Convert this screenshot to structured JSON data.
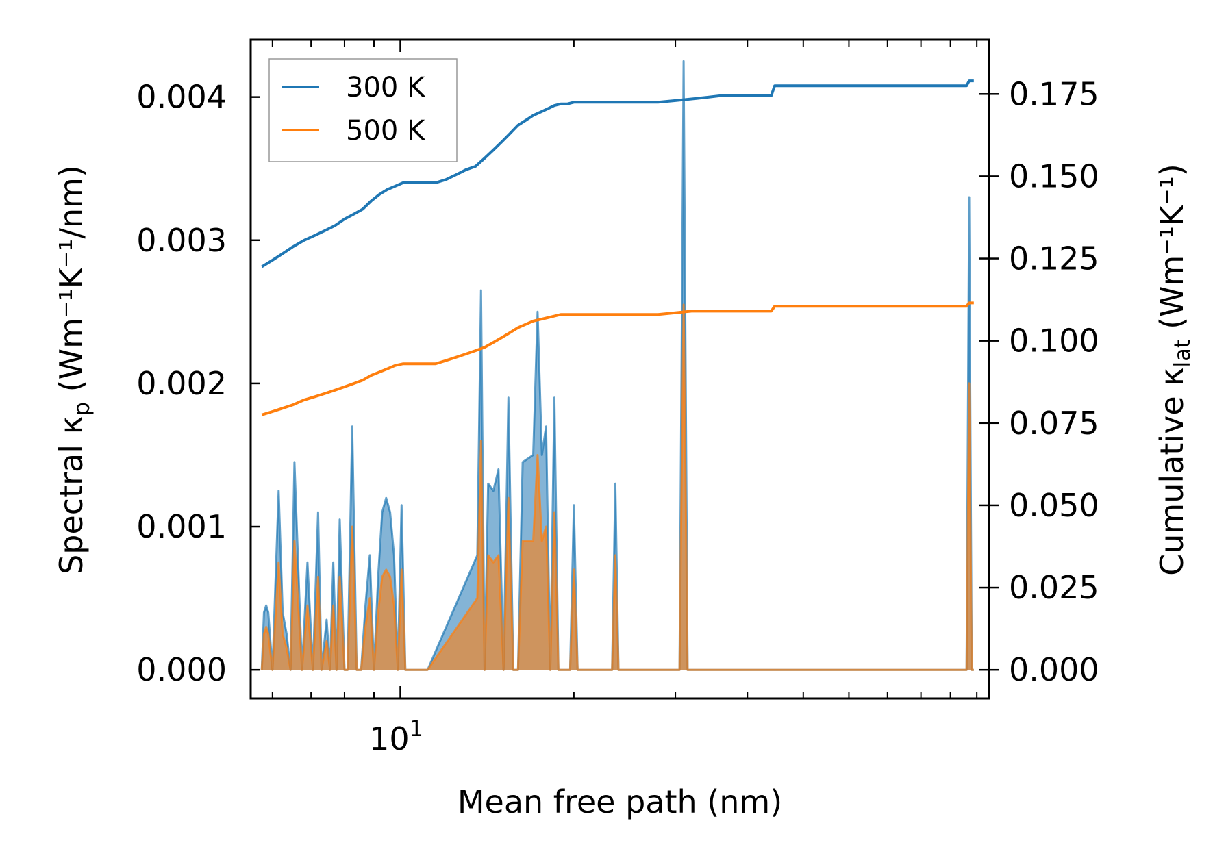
{
  "chart_data": {
    "type": "line",
    "xlabel": "Mean free path (nm)",
    "x_scale": "log",
    "xlim": [
      5.5,
      105
    ],
    "x_ticklabels": [
      {
        "value": 10,
        "base": "10",
        "exponent": "1"
      }
    ],
    "y_left": {
      "label_main": "Spectral κ",
      "label_sub": "p",
      "label_units": " (Wm⁻¹K⁻¹/nm)",
      "ylim": [
        -0.0002,
        0.0044
      ],
      "ticks": [
        0.0,
        0.001,
        0.002,
        0.003,
        0.004
      ],
      "ticklabels": [
        "0.000",
        "0.001",
        "0.002",
        "0.003",
        "0.004"
      ]
    },
    "y_right": {
      "label_main": "Cumulative κ",
      "label_sub": "lat",
      "label_units": " (Wm⁻¹K⁻¹)",
      "ylim": [
        -0.0087,
        0.1915
      ],
      "ticks": [
        0.0,
        0.025,
        0.05,
        0.075,
        0.1,
        0.125,
        0.15,
        0.175
      ],
      "ticklabels": [
        "0.000",
        "0.025",
        "0.050",
        "0.075",
        "0.100",
        "0.125",
        "0.150",
        "0.175"
      ]
    },
    "legend": {
      "position": "top-left"
    },
    "series": [
      {
        "name": "300 K",
        "color": "#1f77b4",
        "spectral_x": [
          5.75,
          5.8,
          5.85,
          5.9,
          6.0,
          6.15,
          6.25,
          6.35,
          6.45,
          6.55,
          6.75,
          6.9,
          7.05,
          7.2,
          7.3,
          7.45,
          7.55,
          7.65,
          7.75,
          7.85,
          8.0,
          8.1,
          8.25,
          8.4,
          8.55,
          8.7,
          8.85,
          9.0,
          9.15,
          9.3,
          9.45,
          9.6,
          9.75,
          9.9,
          10.05,
          10.2,
          10.35,
          10.5,
          10.7,
          10.85,
          11.0,
          11.15,
          13.6,
          13.8,
          14.0,
          14.2,
          14.5,
          14.8,
          15.1,
          15.4,
          15.7,
          16.0,
          16.3,
          17.0,
          17.3,
          17.6,
          17.9,
          18.2,
          18.5,
          18.8,
          19.1,
          19.4,
          19.7,
          20.0,
          20.3,
          20.6,
          21.0,
          23.3,
          23.6,
          23.9,
          30.5,
          31.0,
          31.5,
          44.0,
          44.5,
          45.2,
          96.0,
          97.0,
          98.0,
          98.8
        ],
        "spectral_y": [
          0.0,
          0.0004,
          0.00045,
          0.0004,
          0.0,
          0.00125,
          0.0004,
          0.00025,
          0.0,
          0.00145,
          0.0,
          0.00075,
          0.0,
          0.0011,
          0.0,
          0.00035,
          0.0,
          0.00075,
          0.0,
          0.00105,
          0.0,
          0.0,
          0.0017,
          0.0,
          0.0,
          0.00045,
          0.0008,
          0.0,
          0.00065,
          0.0011,
          0.0012,
          0.0011,
          0.0008,
          0.0,
          0.00115,
          0.0,
          0.0,
          0.0,
          0.0,
          0.0,
          0.0,
          0.0,
          0.0008,
          0.00265,
          0.0,
          0.0013,
          0.00125,
          0.0014,
          0.0,
          0.0019,
          0.0,
          0.0,
          0.00145,
          0.0015,
          0.0025,
          0.0015,
          0.0017,
          0.0,
          0.0019,
          0.0,
          0.0,
          0.0,
          0.0,
          0.00115,
          0.0,
          0.0,
          0.0,
          0.0,
          0.0013,
          0.0,
          0.0,
          0.00425,
          0.0,
          0.0,
          0.0,
          0.0,
          0.0,
          0.0033,
          0.0,
          0.0
        ],
        "cumulative_x": [
          5.75,
          6.0,
          6.25,
          6.5,
          6.8,
          7.1,
          7.4,
          7.7,
          8.0,
          8.3,
          8.6,
          8.9,
          9.2,
          9.5,
          9.8,
          10.1,
          10.4,
          10.7,
          11.0,
          11.5,
          12.0,
          12.5,
          13.0,
          13.5,
          14.0,
          14.5,
          15.0,
          15.5,
          16.0,
          16.5,
          17.0,
          17.5,
          18.0,
          18.5,
          19.0,
          19.5,
          20.0,
          21.0,
          22.0,
          23.0,
          24.0,
          26.0,
          28.0,
          30.0,
          32.0,
          34.0,
          36.0,
          38.0,
          40.0,
          42.0,
          44.0,
          44.6,
          46.0,
          50.0,
          60.0,
          70.0,
          80.0,
          90.0,
          96.0,
          97.0,
          98.8
        ],
        "cumulative_y": [
          0.1225,
          0.1245,
          0.1265,
          0.1285,
          0.1305,
          0.132,
          0.1335,
          0.135,
          0.137,
          0.1385,
          0.14,
          0.1425,
          0.1445,
          0.146,
          0.147,
          0.148,
          0.148,
          0.148,
          0.148,
          0.148,
          0.149,
          0.1505,
          0.152,
          0.153,
          0.1555,
          0.158,
          0.1605,
          0.163,
          0.1655,
          0.167,
          0.1685,
          0.1695,
          0.1705,
          0.1715,
          0.172,
          0.172,
          0.1725,
          0.1725,
          0.1725,
          0.1725,
          0.1725,
          0.1725,
          0.1725,
          0.173,
          0.1735,
          0.174,
          0.1745,
          0.1745,
          0.1745,
          0.1745,
          0.1745,
          0.1775,
          0.1775,
          0.1775,
          0.1775,
          0.1775,
          0.1775,
          0.1775,
          0.1775,
          0.179,
          0.179
        ]
      },
      {
        "name": "500 K",
        "color": "#ff7f0e",
        "spectral_x": [
          5.75,
          5.8,
          5.85,
          5.9,
          6.0,
          6.15,
          6.25,
          6.35,
          6.45,
          6.55,
          6.75,
          6.9,
          7.05,
          7.2,
          7.3,
          7.45,
          7.55,
          7.65,
          7.75,
          7.85,
          8.0,
          8.1,
          8.25,
          8.4,
          8.55,
          8.7,
          8.85,
          9.0,
          9.15,
          9.3,
          9.45,
          9.6,
          9.75,
          9.9,
          10.05,
          10.2,
          10.35,
          10.5,
          10.7,
          10.85,
          11.0,
          11.15,
          13.6,
          13.8,
          14.0,
          14.2,
          14.5,
          14.8,
          15.1,
          15.4,
          15.7,
          16.0,
          16.3,
          17.0,
          17.3,
          17.6,
          17.9,
          18.2,
          18.5,
          18.8,
          19.1,
          19.4,
          19.7,
          20.0,
          20.3,
          20.6,
          21.0,
          23.3,
          23.6,
          23.9,
          30.5,
          31.0,
          31.5,
          44.0,
          44.5,
          45.2,
          96.0,
          97.0,
          98.0,
          98.8
        ],
        "spectral_y": [
          0.0,
          0.00025,
          0.0003,
          0.00025,
          0.0,
          0.00075,
          0.00025,
          0.00015,
          0.0,
          0.0009,
          0.0,
          0.00045,
          0.0,
          0.00065,
          0.0,
          0.0002,
          0.0,
          0.00045,
          0.0,
          0.00065,
          0.0,
          0.0,
          0.001,
          0.0,
          0.0,
          0.0003,
          0.0005,
          0.0,
          0.0004,
          0.00065,
          0.0007,
          0.00065,
          0.00045,
          0.0,
          0.0007,
          0.0,
          0.0,
          0.0,
          0.0,
          0.0,
          0.0,
          0.0,
          0.0005,
          0.0016,
          0.0,
          0.0008,
          0.00075,
          0.0008,
          0.0,
          0.0012,
          0.0,
          0.0,
          0.0009,
          0.0009,
          0.0015,
          0.0009,
          0.001,
          0.0,
          0.0011,
          0.0,
          0.0,
          0.0,
          0.0,
          0.0007,
          0.0,
          0.0,
          0.0,
          0.0,
          0.0008,
          0.0,
          0.0,
          0.00255,
          0.0,
          0.0,
          0.0,
          0.0,
          0.0,
          0.002,
          0.0,
          0.0
        ],
        "cumulative_x": [
          5.75,
          6.0,
          6.25,
          6.5,
          6.8,
          7.1,
          7.4,
          7.7,
          8.0,
          8.3,
          8.6,
          8.9,
          9.2,
          9.5,
          9.8,
          10.1,
          10.4,
          10.7,
          11.0,
          11.5,
          12.0,
          12.5,
          13.0,
          13.5,
          14.0,
          14.5,
          15.0,
          15.5,
          16.0,
          16.5,
          17.0,
          17.5,
          18.0,
          18.5,
          19.0,
          19.5,
          20.0,
          21.0,
          22.0,
          23.0,
          24.0,
          26.0,
          28.0,
          30.0,
          32.0,
          34.0,
          36.0,
          38.0,
          40.0,
          42.0,
          44.0,
          44.6,
          46.0,
          50.0,
          60.0,
          70.0,
          80.0,
          90.0,
          96.0,
          97.0,
          98.8
        ],
        "cumulative_y": [
          0.0775,
          0.0785,
          0.0795,
          0.0805,
          0.082,
          0.083,
          0.084,
          0.085,
          0.086,
          0.087,
          0.088,
          0.0895,
          0.0905,
          0.0915,
          0.0925,
          0.093,
          0.093,
          0.093,
          0.093,
          0.093,
          0.094,
          0.095,
          0.096,
          0.097,
          0.098,
          0.0995,
          0.101,
          0.1025,
          0.104,
          0.105,
          0.106,
          0.1065,
          0.107,
          0.1075,
          0.108,
          0.108,
          0.108,
          0.108,
          0.108,
          0.108,
          0.108,
          0.108,
          0.108,
          0.1085,
          0.109,
          0.109,
          0.109,
          0.109,
          0.109,
          0.109,
          0.109,
          0.1105,
          0.1105,
          0.1105,
          0.1105,
          0.1105,
          0.1105,
          0.1105,
          0.1105,
          0.1115,
          0.1115
        ]
      }
    ]
  }
}
